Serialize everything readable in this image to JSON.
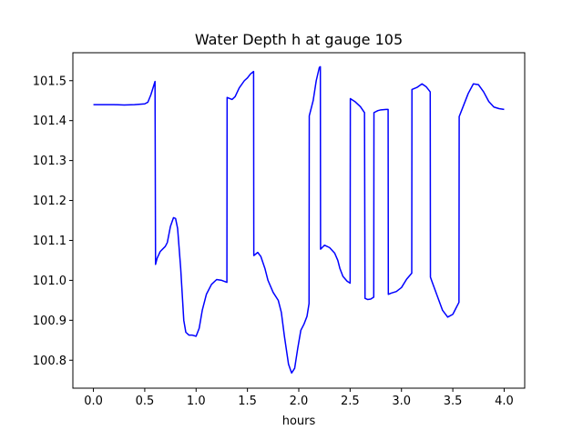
{
  "chart_data": {
    "type": "line",
    "title": "Water Depth h at gauge 105",
    "xlabel": "hours",
    "ylabel": "",
    "xlim": [
      -0.2,
      4.2
    ],
    "ylim": [
      100.73,
      101.57
    ],
    "x_ticks": [
      0.0,
      0.5,
      1.0,
      1.5,
      2.0,
      2.5,
      3.0,
      3.5,
      4.0
    ],
    "x_tick_labels": [
      "0.0",
      "0.5",
      "1.0",
      "1.5",
      "2.0",
      "2.5",
      "3.0",
      "3.5",
      "4.0"
    ],
    "y_ticks": [
      100.8,
      100.9,
      101.0,
      101.1,
      101.2,
      101.3,
      101.4,
      101.5
    ],
    "y_tick_labels": [
      "100.8",
      "100.9",
      "101.0",
      "101.1",
      "101.2",
      "101.3",
      "101.4",
      "101.5"
    ],
    "grid": false,
    "legend": "none",
    "series": [
      {
        "color": "#0000ff",
        "points": [
          [
            0.0,
            101.44
          ],
          [
            0.1,
            101.44
          ],
          [
            0.2,
            101.44
          ],
          [
            0.3,
            101.439
          ],
          [
            0.4,
            101.44
          ],
          [
            0.5,
            101.442
          ],
          [
            0.53,
            101.446
          ],
          [
            0.56,
            101.465
          ],
          [
            0.6,
            101.498
          ],
          [
            0.605,
            101.04
          ],
          [
            0.62,
            101.055
          ],
          [
            0.65,
            101.072
          ],
          [
            0.7,
            101.085
          ],
          [
            0.72,
            101.095
          ],
          [
            0.75,
            101.135
          ],
          [
            0.78,
            101.157
          ],
          [
            0.8,
            101.155
          ],
          [
            0.82,
            101.13
          ],
          [
            0.85,
            101.03
          ],
          [
            0.88,
            100.9
          ],
          [
            0.9,
            100.87
          ],
          [
            0.93,
            100.863
          ],
          [
            0.96,
            100.863
          ],
          [
            1.0,
            100.86
          ],
          [
            1.03,
            100.88
          ],
          [
            1.06,
            100.925
          ],
          [
            1.1,
            100.965
          ],
          [
            1.15,
            100.99
          ],
          [
            1.2,
            101.002
          ],
          [
            1.25,
            101.0
          ],
          [
            1.3,
            100.995
          ],
          [
            1.302,
            101.458
          ],
          [
            1.35,
            101.453
          ],
          [
            1.38,
            101.46
          ],
          [
            1.42,
            101.482
          ],
          [
            1.47,
            101.5
          ],
          [
            1.5,
            101.507
          ],
          [
            1.53,
            101.517
          ],
          [
            1.56,
            101.523
          ],
          [
            1.562,
            101.062
          ],
          [
            1.6,
            101.07
          ],
          [
            1.63,
            101.06
          ],
          [
            1.67,
            101.03
          ],
          [
            1.7,
            101.0
          ],
          [
            1.75,
            100.97
          ],
          [
            1.8,
            100.95
          ],
          [
            1.83,
            100.92
          ],
          [
            1.86,
            100.86
          ],
          [
            1.9,
            100.79
          ],
          [
            1.93,
            100.768
          ],
          [
            1.96,
            100.78
          ],
          [
            1.99,
            100.83
          ],
          [
            2.02,
            100.875
          ],
          [
            2.05,
            100.89
          ],
          [
            2.08,
            100.91
          ],
          [
            2.1,
            100.942
          ],
          [
            2.102,
            101.412
          ],
          [
            2.14,
            101.45
          ],
          [
            2.17,
            101.5
          ],
          [
            2.2,
            101.533
          ],
          [
            2.21,
            101.535
          ],
          [
            2.212,
            101.078
          ],
          [
            2.25,
            101.088
          ],
          [
            2.3,
            101.082
          ],
          [
            2.35,
            101.068
          ],
          [
            2.38,
            101.05
          ],
          [
            2.4,
            101.03
          ],
          [
            2.43,
            101.01
          ],
          [
            2.47,
            100.998
          ],
          [
            2.5,
            100.993
          ],
          [
            2.502,
            101.455
          ],
          [
            2.55,
            101.447
          ],
          [
            2.6,
            101.435
          ],
          [
            2.64,
            101.42
          ],
          [
            2.645,
            100.955
          ],
          [
            2.67,
            100.952
          ],
          [
            2.7,
            100.953
          ],
          [
            2.73,
            100.958
          ],
          [
            2.732,
            101.42
          ],
          [
            2.77,
            101.425
          ],
          [
            2.8,
            101.427
          ],
          [
            2.85,
            101.428
          ],
          [
            2.87,
            101.428
          ],
          [
            2.872,
            100.965
          ],
          [
            2.9,
            100.968
          ],
          [
            2.95,
            100.972
          ],
          [
            3.0,
            100.982
          ],
          [
            3.05,
            101.003
          ],
          [
            3.1,
            101.018
          ],
          [
            3.102,
            101.478
          ],
          [
            3.15,
            101.483
          ],
          [
            3.2,
            101.492
          ],
          [
            3.24,
            101.485
          ],
          [
            3.28,
            101.472
          ],
          [
            3.282,
            101.008
          ],
          [
            3.3,
            100.995
          ],
          [
            3.35,
            100.96
          ],
          [
            3.4,
            100.925
          ],
          [
            3.45,
            100.908
          ],
          [
            3.5,
            100.915
          ],
          [
            3.53,
            100.93
          ],
          [
            3.56,
            100.945
          ],
          [
            3.562,
            101.41
          ],
          [
            3.6,
            101.435
          ],
          [
            3.65,
            101.468
          ],
          [
            3.7,
            101.492
          ],
          [
            3.75,
            101.49
          ],
          [
            3.8,
            101.472
          ],
          [
            3.85,
            101.448
          ],
          [
            3.9,
            101.434
          ],
          [
            3.95,
            101.43
          ],
          [
            4.0,
            101.428
          ]
        ]
      }
    ]
  }
}
